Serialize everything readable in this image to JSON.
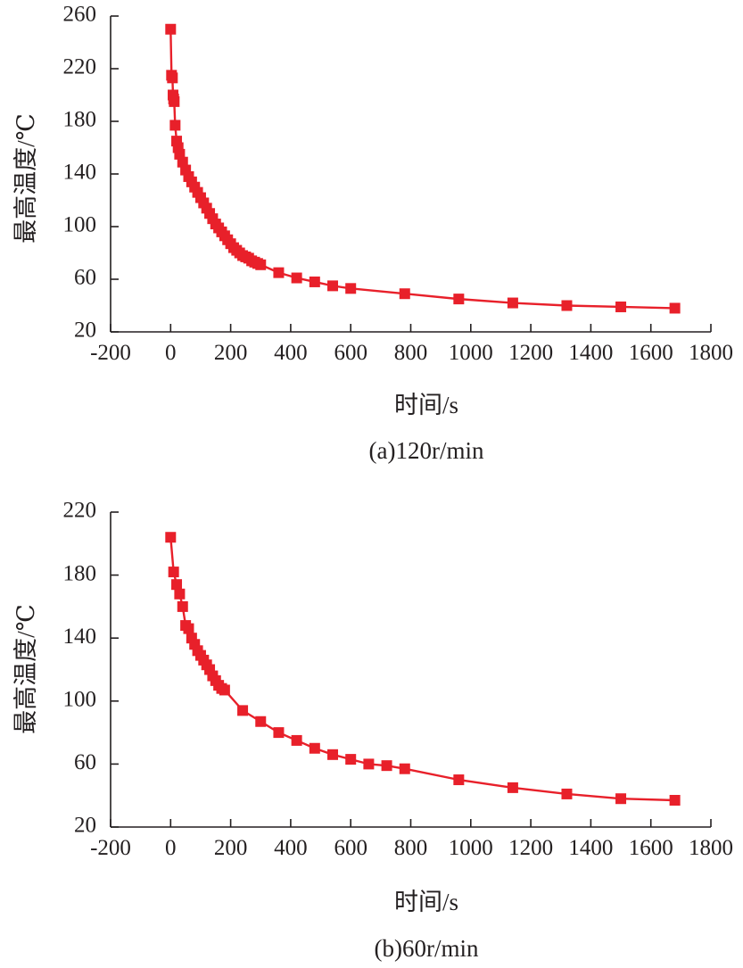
{
  "chart_data": [
    {
      "type": "line",
      "caption": "(a)120r/min",
      "xlabel": "时间/s",
      "ylabel": "最高温度/℃",
      "xlim": [
        -200,
        1800
      ],
      "ylim": [
        20,
        260
      ],
      "xticks": [
        -200,
        0,
        200,
        400,
        600,
        800,
        1000,
        1200,
        1400,
        1600,
        1800
      ],
      "yticks": [
        20,
        60,
        100,
        140,
        180,
        220,
        260
      ],
      "grid": false,
      "color": "#e8202a",
      "marker": "square",
      "series": [
        {
          "x": [
            0,
            3,
            6,
            8,
            10,
            12,
            15,
            20,
            25,
            30,
            40,
            50,
            60,
            70,
            80,
            90,
            100,
            110,
            120,
            130,
            140,
            150,
            160,
            170,
            180,
            190,
            200,
            210,
            220,
            230,
            240,
            250,
            260,
            270,
            280,
            290,
            300,
            360,
            420,
            480,
            540,
            600,
            780,
            960,
            1140,
            1320,
            1500,
            1680
          ],
          "y": [
            250,
            215,
            213,
            200,
            197,
            195,
            177,
            165,
            160,
            155,
            149,
            143,
            138,
            134,
            130,
            126,
            122,
            118,
            114,
            110,
            106,
            102,
            99,
            96,
            93,
            90,
            87,
            84,
            82,
            80,
            78,
            77,
            76,
            74,
            73,
            72,
            71,
            65,
            61,
            58,
            55,
            53,
            49,
            45,
            42,
            40,
            39,
            38
          ]
        }
      ]
    },
    {
      "type": "line",
      "caption": "(b)60r/min",
      "xlabel": "时间/s",
      "ylabel": "最高温度/℃",
      "xlim": [
        -200,
        1800
      ],
      "ylim": [
        20,
        220
      ],
      "xticks": [
        -200,
        0,
        200,
        400,
        600,
        800,
        1000,
        1200,
        1400,
        1600,
        1800
      ],
      "yticks": [
        20,
        60,
        100,
        140,
        180,
        220
      ],
      "grid": false,
      "color": "#e8202a",
      "marker": "square",
      "series": [
        {
          "x": [
            0,
            10,
            20,
            30,
            40,
            50,
            60,
            70,
            80,
            90,
            100,
            110,
            120,
            130,
            140,
            150,
            160,
            170,
            180,
            240,
            300,
            360,
            420,
            480,
            540,
            600,
            660,
            720,
            780,
            960,
            1140,
            1320,
            1500,
            1680
          ],
          "y": [
            204,
            182,
            174,
            168,
            160,
            148,
            146,
            140,
            136,
            132,
            129,
            126,
            123,
            120,
            116,
            113,
            110,
            108,
            107,
            94,
            87,
            80,
            75,
            70,
            66,
            63,
            60,
            59,
            57,
            50,
            45,
            41,
            38,
            37
          ]
        }
      ]
    }
  ]
}
